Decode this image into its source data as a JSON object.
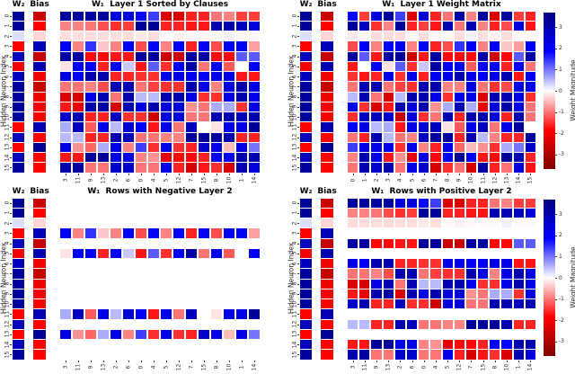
{
  "figure": {
    "background": "#ffffff",
    "colors": {
      "positive_max": "#00007f",
      "positive_mid": "#0000ff",
      "zero": "#ffffff",
      "negative_mid": "#ff0000",
      "negative_max": "#7f0000",
      "tick_text": "#262626",
      "title_text": "#000000"
    }
  },
  "chart_data": {
    "type": "heatmap",
    "y_label": "Hidden Neuron Index",
    "y_tick_labels": [
      "0",
      "1",
      "2",
      "3",
      "4",
      "5",
      "6",
      "7",
      "8",
      "9",
      "10",
      "11",
      "12",
      "13",
      "14",
      "15"
    ],
    "value_range": [
      -3.7,
      3.7
    ],
    "colorbar": {
      "label": "Weight Magnitude",
      "tick_labels": [
        "3",
        "2",
        "1",
        "0",
        "-1",
        "-2",
        "-3"
      ],
      "tick_values": [
        3,
        2,
        1,
        0,
        -1,
        -2,
        -3
      ]
    },
    "w2_column": [
      3.4,
      3.4,
      0.25,
      -1.9,
      2.9,
      -2.0,
      2.9,
      3.3,
      3.3,
      3.3,
      3.3,
      -1.9,
      2.9,
      -1.9,
      2.9,
      3.3
    ],
    "bias_column": [
      -2.6,
      -1.9,
      -0.3,
      2.9,
      -2.7,
      3.0,
      -2.0,
      -2.7,
      -2.1,
      -2.0,
      -1.9,
      3.0,
      -1.9,
      3.4,
      -1.9,
      -1.9
    ],
    "w1_matrix": [
      [
        1.8,
        -1.4,
        2.4,
        3.3,
        1.4,
        -2.4,
        2.4,
        -1.6,
        -1.0,
        3.2,
        -0.9,
        3.3,
        -2.4,
        3.3,
        -1.4,
        -1.6
      ],
      [
        3.3,
        2.8,
        -1.5,
        -0.9,
        3.3,
        -1.6,
        -1.4,
        -1.7,
        3.0,
        -1.0,
        3.0,
        -0.9,
        -1.6,
        -1.3,
        2.4,
        -1.7
      ],
      [
        -0.15,
        -0.05,
        -0.25,
        -0.25,
        -0.25,
        -0.05,
        -0.25,
        -0.05,
        -0.05,
        -0.25,
        0.1,
        -0.25,
        -0.1,
        -0.25,
        -0.05,
        -0.05
      ],
      [
        -1.3,
        2.0,
        -0.9,
        2.0,
        2.0,
        -0.9,
        2.0,
        -1.6,
        -1.3,
        1.5,
        2.0,
        -0.9,
        2.0,
        -0.4,
        -0.7,
        2.0
      ],
      [
        3.3,
        1.2,
        -1.7,
        3.2,
        3.3,
        -2.6,
        -1.7,
        3.2,
        -1.8,
        -1.8,
        -1.8,
        3.2,
        -2.6,
        -1.8,
        1.2,
        3.2
      ],
      [
        -1.7,
        0.0,
        2.0,
        -0.2,
        1.2,
        -1.5,
        0.4,
        3.2,
        2.0,
        2.0,
        -1.2,
        2.0,
        2.0,
        -1.6,
        2.0,
        -1.0
      ],
      [
        -1.5,
        -1.7,
        -1.6,
        2.2,
        -1.5,
        2.2,
        -1.6,
        2.0,
        2.2,
        3.0,
        2.2,
        2.0,
        2.2,
        3.0,
        -1.7,
        2.0
      ],
      [
        -1.0,
        3.0,
        3.0,
        -1.0,
        -1.4,
        -1.5,
        3.0,
        3.0,
        -0.9,
        -0.9,
        2.2,
        -1.0,
        -1.5,
        -1.3,
        2.2,
        2.2
      ],
      [
        0.5,
        3.0,
        -1.0,
        -2.4,
        0.5,
        3.0,
        3.0,
        2.2,
        -1.5,
        2.2,
        2.2,
        -2.4,
        3.0,
        3.0,
        2.2,
        -1.5
      ],
      [
        2.2,
        -1.5,
        -2.4,
        -1.7,
        3.0,
        2.4,
        3.0,
        -0.8,
        0.6,
        3.0,
        0.6,
        -2.2,
        2.4,
        3.2,
        2.2,
        -1.0
      ],
      [
        -1.5,
        2.8,
        2.8,
        2.6,
        -2.6,
        2.4,
        -1.5,
        -1.0,
        3.0,
        -1.6,
        3.0,
        3.0,
        2.4,
        -1.6,
        3.0,
        -1.0
      ],
      [
        2.0,
        2.2,
        0.5,
        0.6,
        -1.7,
        2.2,
        2.5,
        2.8,
        -0.2,
        -1.2,
        2.2,
        2.8,
        -1.0,
        2.2,
        3.3,
        0.0
      ],
      [
        -1.0,
        -1.6,
        3.0,
        0.5,
        -1.0,
        -0.9,
        2.8,
        3.3,
        3.3,
        -1.6,
        3.0,
        0.5,
        -0.9,
        -1.6,
        -1.6,
        3.3
      ],
      [
        1.4,
        2.2,
        2.2,
        2.2,
        -1.5,
        2.2,
        -0.9,
        -1.6,
        2.2,
        -1.1,
        -0.5,
        -0.8,
        -1.5,
        0.6,
        1.0,
        2.6
      ],
      [
        -0.9,
        3.0,
        2.2,
        -1.7,
        -0.8,
        -2.2,
        2.2,
        -1.8,
        2.0,
        3.3,
        2.0,
        -1.7,
        -1.8,
        3.3,
        3.0,
        -1.6
      ],
      [
        -1.0,
        3.0,
        2.6,
        3.0,
        -1.0,
        2.2,
        2.6,
        -2.4,
        -1.5,
        -1.0,
        -2.4,
        3.2,
        -1.6,
        -1.0,
        2.4,
        -1.7
      ]
    ],
    "sorted_column_order": [
      3,
      11,
      9,
      13,
      2,
      6,
      0,
      4,
      5,
      12,
      7,
      15,
      8,
      10,
      1,
      14
    ],
    "negative_layer2_rows": [
      3,
      5,
      11,
      13
    ],
    "positive_layer2_rows": [
      0,
      1,
      2,
      4,
      6,
      7,
      8,
      9,
      10,
      12,
      14,
      15
    ],
    "panels": [
      {
        "id": "layer1-sorted-by-clauses",
        "w2_header": "W₂",
        "bias_header": "Bias",
        "title": "W₁  Layer 1 Sorted by Clauses",
        "column_order": "sorted",
        "row_filter": "all",
        "has_colorbar": false,
        "x_tick_labels": [
          "3",
          "11",
          "9",
          "13",
          "2",
          "6",
          "0",
          "4",
          "5",
          "12",
          "7",
          "15",
          "8",
          "10",
          "1",
          "14"
        ]
      },
      {
        "id": "layer1-weight-matrix",
        "w2_header": "W₂",
        "bias_header": "Bias",
        "title": "W₁  Layer 1 Weight Matrix",
        "column_order": "natural",
        "row_filter": "all",
        "has_colorbar": true,
        "x_tick_labels": [
          "0",
          "1",
          "2",
          "3",
          "4",
          "5",
          "6",
          "7",
          "8",
          "9",
          "10",
          "11",
          "12",
          "13",
          "14",
          "15"
        ]
      },
      {
        "id": "rows-with-negative-layer2",
        "w2_header": "W₂",
        "bias_header": "Bias",
        "title": "W₁  Rows with Negative Layer 2",
        "column_order": "sorted",
        "row_filter": "negative",
        "has_colorbar": false,
        "x_tick_labels": [
          "3",
          "11",
          "9",
          "13",
          "2",
          "6",
          "0",
          "4",
          "5",
          "12",
          "7",
          "15",
          "8",
          "10",
          "1",
          "14"
        ]
      },
      {
        "id": "rows-with-positive-layer2",
        "w2_header": "W₂",
        "bias_header": "Bias",
        "title": "W₁  Rows with Positive Layer 2",
        "column_order": "sorted",
        "row_filter": "positive",
        "has_colorbar": true,
        "x_tick_labels": [
          "3",
          "11",
          "9",
          "13",
          "2",
          "6",
          "0",
          "4",
          "5",
          "12",
          "7",
          "15",
          "8",
          "10",
          "1",
          "14"
        ]
      }
    ]
  }
}
